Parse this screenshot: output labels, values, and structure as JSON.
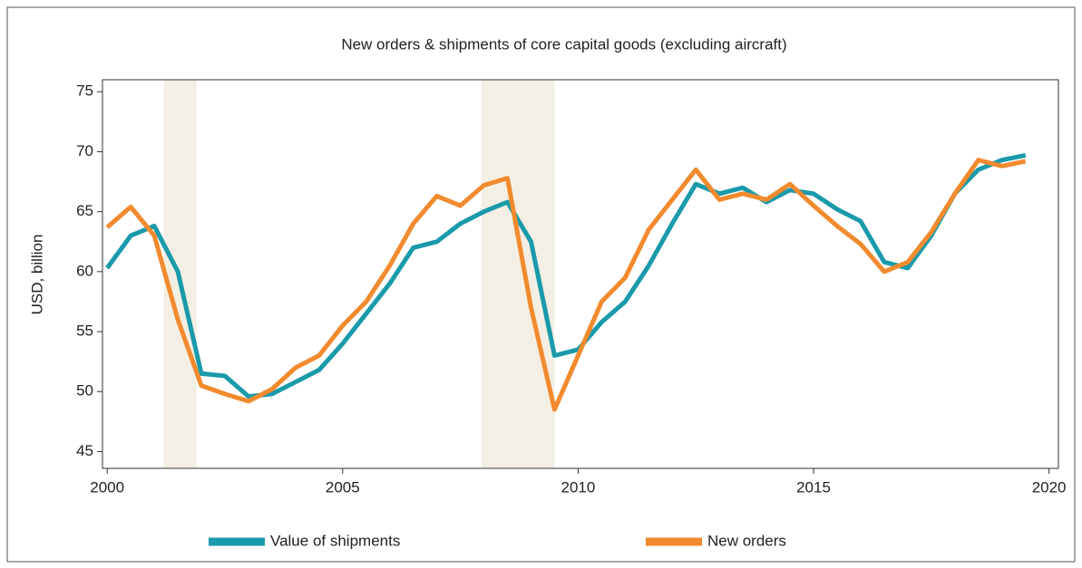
{
  "chart_data": {
    "type": "line",
    "title": "New orders & shipments of core capital goods (excluding aircraft)",
    "y_label": "USD, billion",
    "x": [
      2000,
      2000.5,
      2001,
      2001.5,
      2002,
      2002.5,
      2003,
      2003.5,
      2004,
      2004.5,
      2005,
      2005.5,
      2006,
      2006.5,
      2007,
      2007.5,
      2008,
      2008.5,
      2009,
      2009.5,
      2010,
      2010.5,
      2011,
      2011.5,
      2012,
      2012.5,
      2013,
      2013.5,
      2014,
      2014.5,
      2015,
      2015.5,
      2016,
      2016.5,
      2017,
      2017.5,
      2018,
      2018.5,
      2019,
      2019.5
    ],
    "series": [
      {
        "name": "Value of shipments",
        "color": "#1a9aaa",
        "values": [
          60.3,
          63.0,
          63.8,
          60.0,
          51.5,
          51.3,
          49.6,
          49.8,
          50.8,
          51.8,
          54.0,
          56.5,
          59.0,
          62.0,
          62.5,
          64.0,
          65.0,
          65.8,
          62.5,
          53.0,
          53.5,
          55.8,
          57.5,
          60.5,
          64.0,
          67.3,
          66.5,
          67.0,
          65.8,
          66.8,
          66.5,
          65.2,
          64.2,
          60.8,
          60.3,
          63.0,
          66.5,
          68.5,
          69.3,
          69.7
        ]
      },
      {
        "name": "New orders",
        "color": "#f28a2e",
        "values": [
          63.7,
          65.4,
          63.0,
          56.0,
          50.5,
          49.8,
          49.2,
          50.2,
          52.0,
          53.0,
          55.5,
          57.5,
          60.5,
          64.0,
          66.3,
          65.5,
          67.2,
          67.8,
          57.0,
          48.5,
          53.0,
          57.5,
          59.5,
          63.5,
          66.0,
          68.5,
          66.0,
          66.5,
          66.0,
          67.3,
          65.5,
          63.8,
          62.3,
          60.0,
          60.8,
          63.3,
          66.5,
          69.3,
          68.8,
          69.2
        ]
      }
    ],
    "shaded_periods": [
      [
        2001.2,
        2001.9
      ],
      [
        2007.95,
        2009.5
      ]
    ],
    "shade_color": "#f3efe4",
    "xlim": [
      1999.9,
      2020.2
    ],
    "xticks": [
      2000,
      2005,
      2010,
      2015,
      2020
    ],
    "ylim": [
      43.6,
      76
    ],
    "yticks": [
      45,
      50,
      55,
      60,
      65,
      70,
      75
    ],
    "grid": false,
    "legend": "bottom"
  }
}
